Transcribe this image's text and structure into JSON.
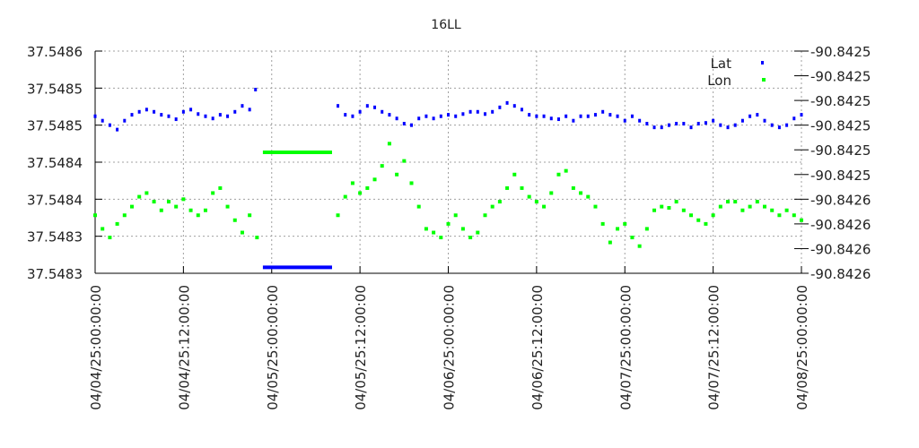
{
  "chart_data": {
    "type": "scatter",
    "title": "16LL",
    "xlabel": "",
    "ylabel": "",
    "x_unit": "hours since 04/04/25 00:00:00",
    "xlim": [
      0,
      96
    ],
    "x_tick_values": [
      0,
      12,
      24,
      36,
      48,
      60,
      72,
      84,
      96
    ],
    "x_tick_labels": [
      "04/04/25:00:00:00",
      "04/04/25:12:00:00",
      "04/05/25:00:00:00",
      "04/05/25:12:00:00",
      "04/06/25:00:00:00",
      "04/06/25:12:00:00",
      "04/07/25:00:00:00",
      "04/07/25:12:00:00",
      "04/08/25:00:00:00"
    ],
    "y_left": {
      "ylim": [
        37.5483,
        37.5486
      ],
      "tick_labels": [
        "37.5486",
        "37.5485",
        "37.5485",
        "37.5484",
        "37.5484",
        "37.5483",
        "37.5483"
      ]
    },
    "y_right": {
      "ylim": [
        -90.84263,
        -90.84245
      ],
      "tick_labels": [
        "-90.8425",
        "-90.8425",
        "-90.8425",
        "-90.8425",
        "-90.8425",
        "-90.8425",
        "-90.8426",
        "-90.8426",
        "-90.8426",
        "-90.8426"
      ]
    },
    "grid": true,
    "legend_position": "top-right",
    "series": [
      {
        "name": "Lat",
        "axis": "left",
        "color": "#0000ff",
        "points": [
          [
            0,
            37.548512
          ],
          [
            1,
            37.548506
          ],
          [
            2,
            37.5485
          ],
          [
            3,
            37.548494
          ],
          [
            4,
            37.548506
          ],
          [
            5,
            37.548514
          ],
          [
            6,
            37.548518
          ],
          [
            7,
            37.548521
          ],
          [
            8,
            37.548518
          ],
          [
            9,
            37.548514
          ],
          [
            10,
            37.548512
          ],
          [
            11,
            37.548508
          ],
          [
            12,
            37.548518
          ],
          [
            13,
            37.548521
          ],
          [
            14,
            37.548515
          ],
          [
            15,
            37.548512
          ],
          [
            16,
            37.548509
          ],
          [
            17,
            37.548514
          ],
          [
            18,
            37.548512
          ],
          [
            19,
            37.548518
          ],
          [
            20,
            37.548526
          ],
          [
            21,
            37.548521
          ],
          [
            21.8,
            37.548548
          ],
          [
            33,
            37.548526
          ],
          [
            34,
            37.548514
          ],
          [
            35,
            37.548512
          ],
          [
            36,
            37.548518
          ],
          [
            37,
            37.548526
          ],
          [
            38,
            37.548524
          ],
          [
            39,
            37.548518
          ],
          [
            40,
            37.548514
          ],
          [
            41,
            37.548509
          ],
          [
            42,
            37.548502
          ],
          [
            43,
            37.5485
          ],
          [
            44,
            37.548509
          ],
          [
            45,
            37.548512
          ],
          [
            46,
            37.548509
          ],
          [
            47,
            37.548512
          ],
          [
            48,
            37.548514
          ],
          [
            49,
            37.548512
          ],
          [
            50,
            37.548515
          ],
          [
            51,
            37.548518
          ],
          [
            52,
            37.548518
          ],
          [
            53,
            37.548515
          ],
          [
            54,
            37.548518
          ],
          [
            55,
            37.548524
          ],
          [
            56,
            37.54853
          ],
          [
            57,
            37.548526
          ],
          [
            58,
            37.548521
          ],
          [
            59,
            37.548514
          ],
          [
            60,
            37.548512
          ],
          [
            61,
            37.548512
          ],
          [
            62,
            37.548509
          ],
          [
            63,
            37.548508
          ],
          [
            64,
            37.548512
          ],
          [
            65,
            37.548506
          ],
          [
            66,
            37.548512
          ],
          [
            67,
            37.548512
          ],
          [
            68,
            37.548514
          ],
          [
            69,
            37.548518
          ],
          [
            70,
            37.548514
          ],
          [
            71,
            37.548512
          ],
          [
            72,
            37.548506
          ],
          [
            73,
            37.548512
          ],
          [
            74,
            37.548506
          ],
          [
            75,
            37.548502
          ],
          [
            76,
            37.548497
          ],
          [
            77,
            37.548497
          ],
          [
            78,
            37.5485
          ],
          [
            79,
            37.548502
          ],
          [
            80,
            37.548502
          ],
          [
            81,
            37.548497
          ],
          [
            82,
            37.548502
          ],
          [
            83,
            37.548503
          ],
          [
            84,
            37.548506
          ],
          [
            85,
            37.5485
          ],
          [
            86,
            37.548497
          ],
          [
            87,
            37.5485
          ],
          [
            88,
            37.548506
          ],
          [
            89,
            37.548512
          ],
          [
            90,
            37.548514
          ],
          [
            91,
            37.548506
          ],
          [
            92,
            37.5485
          ],
          [
            93,
            37.548497
          ],
          [
            94,
            37.5485
          ],
          [
            95,
            37.548509
          ],
          [
            96,
            37.548514
          ]
        ],
        "flat_segments": [
          [
            22.8,
            32.2,
            37.548308
          ]
        ]
      },
      {
        "name": "Lon",
        "axis": "right",
        "color": "#00ff00",
        "points": [
          [
            0,
            -90.842583
          ],
          [
            1,
            -90.842594
          ],
          [
            2,
            -90.842601
          ],
          [
            3,
            -90.84259
          ],
          [
            4,
            -90.842583
          ],
          [
            5,
            -90.842576
          ],
          [
            6,
            -90.842568
          ],
          [
            7,
            -90.842565
          ],
          [
            8,
            -90.842572
          ],
          [
            9,
            -90.842579
          ],
          [
            10,
            -90.842572
          ],
          [
            11,
            -90.842576
          ],
          [
            12,
            -90.84257
          ],
          [
            13,
            -90.842579
          ],
          [
            14,
            -90.842583
          ],
          [
            15,
            -90.842579
          ],
          [
            16,
            -90.842565
          ],
          [
            17,
            -90.842561
          ],
          [
            18,
            -90.842576
          ],
          [
            19,
            -90.842587
          ],
          [
            20,
            -90.842597
          ],
          [
            21,
            -90.842583
          ],
          [
            22,
            -90.842601
          ],
          [
            33,
            -90.842583
          ],
          [
            34,
            -90.842568
          ],
          [
            35,
            -90.842557
          ],
          [
            36,
            -90.842565
          ],
          [
            37,
            -90.842561
          ],
          [
            38,
            -90.842554
          ],
          [
            39,
            -90.842543
          ],
          [
            40,
            -90.842525
          ],
          [
            41,
            -90.84255
          ],
          [
            42,
            -90.842539
          ],
          [
            43,
            -90.842557
          ],
          [
            44,
            -90.842576
          ],
          [
            45,
            -90.842594
          ],
          [
            46,
            -90.842597
          ],
          [
            47,
            -90.842601
          ],
          [
            48,
            -90.84259
          ],
          [
            49,
            -90.842583
          ],
          [
            50,
            -90.842594
          ],
          [
            51,
            -90.842601
          ],
          [
            52,
            -90.842597
          ],
          [
            53,
            -90.842583
          ],
          [
            54,
            -90.842576
          ],
          [
            55,
            -90.842572
          ],
          [
            56,
            -90.842561
          ],
          [
            57,
            -90.84255
          ],
          [
            58,
            -90.842561
          ],
          [
            59,
            -90.842568
          ],
          [
            60,
            -90.842572
          ],
          [
            61,
            -90.842576
          ],
          [
            62,
            -90.842565
          ],
          [
            63,
            -90.84255
          ],
          [
            64,
            -90.842547
          ],
          [
            65,
            -90.842561
          ],
          [
            66,
            -90.842565
          ],
          [
            67,
            -90.842568
          ],
          [
            68,
            -90.842576
          ],
          [
            69,
            -90.84259
          ],
          [
            70,
            -90.842605
          ],
          [
            71,
            -90.842594
          ],
          [
            72,
            -90.84259
          ],
          [
            73,
            -90.842601
          ],
          [
            74,
            -90.842608
          ],
          [
            75,
            -90.842594
          ],
          [
            76,
            -90.842579
          ],
          [
            77,
            -90.842576
          ],
          [
            78,
            -90.842577
          ],
          [
            79,
            -90.842572
          ],
          [
            80,
            -90.842579
          ],
          [
            81,
            -90.842583
          ],
          [
            82,
            -90.842587
          ],
          [
            83,
            -90.84259
          ],
          [
            84,
            -90.842583
          ],
          [
            85,
            -90.842576
          ],
          [
            86,
            -90.842572
          ],
          [
            87,
            -90.842572
          ],
          [
            88,
            -90.842579
          ],
          [
            89,
            -90.842576
          ],
          [
            90,
            -90.842572
          ],
          [
            91,
            -90.842576
          ],
          [
            92,
            -90.842579
          ],
          [
            93,
            -90.842583
          ],
          [
            94,
            -90.842579
          ],
          [
            95,
            -90.842583
          ],
          [
            96,
            -90.842587
          ]
        ],
        "flat_segments": [
          [
            22.8,
            32.2,
            -90.842532
          ]
        ]
      }
    ]
  }
}
